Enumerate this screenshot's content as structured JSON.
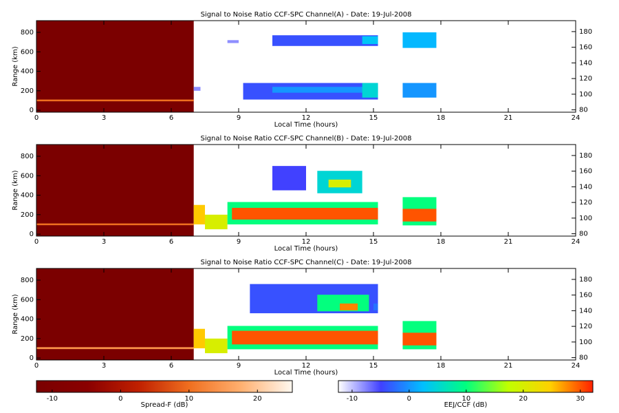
{
  "chart_data": [
    {
      "type": "heatmap",
      "title": "Signal to Noise Ratio CCF-SPC Channel(A) - Date: 19-Jul-2008",
      "x_label": "Local Time (hours)",
      "y_label": "Range (km)",
      "xlim": [
        0,
        24
      ],
      "xticks": [
        0,
        3,
        6,
        9,
        12,
        15,
        18,
        21,
        24
      ],
      "ylim": [
        -20,
        920
      ],
      "yticks": [
        0,
        200,
        400,
        600,
        800
      ],
      "y2lim": [
        77,
        194
      ],
      "y2ticks": [
        80,
        100,
        120,
        140,
        160,
        180
      ],
      "layers": [
        {
          "colorbar": 0,
          "cells": [
            {
              "x": [
                0,
                7
              ],
              "range": [
                -20,
                920
              ],
              "value": -12
            },
            {
              "x": [
                0,
                7
              ],
              "range": [
                92,
                110
              ],
              "value": 10
            }
          ]
        },
        {
          "colorbar": 1,
          "cells": [
            {
              "x": [
                7,
                7.3
              ],
              "range": [
                200,
                240
              ],
              "value": -8
            },
            {
              "x": [
                8.5,
                9
              ],
              "range": [
                690,
                720
              ],
              "value": -8
            },
            {
              "x": [
                10.5,
                15.2
              ],
              "range": [
                660,
                770
              ],
              "value": -4
            },
            {
              "x": [
                14.5,
                15.2
              ],
              "range": [
                680,
                760
              ],
              "value": 3
            },
            {
              "x": [
                16.3,
                17.8
              ],
              "range": [
                640,
                800
              ],
              "value": 2
            },
            {
              "x": [
                9.2,
                15.2
              ],
              "range": [
                110,
                280
              ],
              "value": -4
            },
            {
              "x": [
                10.5,
                15.2
              ],
              "range": [
                180,
                240
              ],
              "value": 0
            },
            {
              "x": [
                14.5,
                15.2
              ],
              "range": [
                130,
                280
              ],
              "value": 5
            },
            {
              "x": [
                16.3,
                17.8
              ],
              "range": [
                130,
                280
              ],
              "value": 0
            }
          ]
        }
      ]
    },
    {
      "type": "heatmap",
      "title": "Signal to Noise Ratio CCF-SPC Channel(B) - Date: 19-Jul-2008",
      "x_label": "Local Time (hours)",
      "y_label": "Range (km)",
      "xlim": [
        0,
        24
      ],
      "xticks": [
        0,
        3,
        6,
        9,
        12,
        15,
        18,
        21,
        24
      ],
      "ylim": [
        -20,
        920
      ],
      "yticks": [
        0,
        200,
        400,
        600,
        800
      ],
      "y2lim": [
        77,
        194
      ],
      "y2ticks": [
        80,
        100,
        120,
        140,
        160,
        180
      ],
      "layers": [
        {
          "colorbar": 0,
          "cells": [
            {
              "x": [
                0,
                7
              ],
              "range": [
                -20,
                920
              ],
              "value": -12
            },
            {
              "x": [
                0,
                7
              ],
              "range": [
                92,
                110
              ],
              "value": 10
            }
          ]
        },
        {
          "colorbar": 1,
          "cells": [
            {
              "x": [
                10.5,
                12
              ],
              "range": [
                450,
                700
              ],
              "value": -5
            },
            {
              "x": [
                12.5,
                14.5
              ],
              "range": [
                420,
                650
              ],
              "value": 5
            },
            {
              "x": [
                13,
                14
              ],
              "range": [
                480,
                560
              ],
              "value": 20
            },
            {
              "x": [
                7,
                7.5
              ],
              "range": [
                100,
                300
              ],
              "value": 25
            },
            {
              "x": [
                7.5,
                8.5
              ],
              "range": [
                50,
                200
              ],
              "value": 20
            },
            {
              "x": [
                8.5,
                15.2
              ],
              "range": [
                100,
                330
              ],
              "value": 10
            },
            {
              "x": [
                8.7,
                15.2
              ],
              "range": [
                150,
                270
              ],
              "value": 30
            },
            {
              "x": [
                16.3,
                17.8
              ],
              "range": [
                90,
                380
              ],
              "value": 10
            },
            {
              "x": [
                16.3,
                17.8
              ],
              "range": [
                130,
                260
              ],
              "value": 30
            }
          ]
        }
      ]
    },
    {
      "type": "heatmap",
      "title": "Signal to Noise Ratio CCF-SPC Channel(C) - Date: 19-Jul-2008",
      "x_label": "Local Time (hours)",
      "y_label": "Range (km)",
      "xlim": [
        0,
        24
      ],
      "xticks": [
        0,
        3,
        6,
        9,
        12,
        15,
        18,
        21,
        24
      ],
      "ylim": [
        -20,
        920
      ],
      "yticks": [
        0,
        200,
        400,
        600,
        800
      ],
      "y2lim": [
        77,
        194
      ],
      "y2ticks": [
        80,
        100,
        120,
        140,
        160,
        180
      ],
      "layers": [
        {
          "colorbar": 0,
          "cells": [
            {
              "x": [
                0,
                7
              ],
              "range": [
                -20,
                920
              ],
              "value": -12
            },
            {
              "x": [
                0,
                7
              ],
              "range": [
                92,
                112
              ],
              "value": 14
            }
          ]
        },
        {
          "colorbar": 1,
          "cells": [
            {
              "x": [
                9.5,
                15.2
              ],
              "range": [
                460,
                760
              ],
              "value": -4
            },
            {
              "x": [
                12.5,
                14.8
              ],
              "range": [
                480,
                650
              ],
              "value": 10
            },
            {
              "x": [
                13.5,
                14.3
              ],
              "range": [
                490,
                560
              ],
              "value": 28
            },
            {
              "x": [
                15,
                15.2
              ],
              "range": [
                490,
                560
              ],
              "value": -2
            },
            {
              "x": [
                7,
                7.5
              ],
              "range": [
                100,
                300
              ],
              "value": 25
            },
            {
              "x": [
                7.5,
                8.5
              ],
              "range": [
                50,
                200
              ],
              "value": 20
            },
            {
              "x": [
                8.5,
                15.2
              ],
              "range": [
                90,
                330
              ],
              "value": 10
            },
            {
              "x": [
                8.7,
                15.2
              ],
              "range": [
                140,
                280
              ],
              "value": 30
            },
            {
              "x": [
                16.3,
                17.8
              ],
              "range": [
                90,
                380
              ],
              "value": 10
            },
            {
              "x": [
                16.3,
                17.8
              ],
              "range": [
                130,
                260
              ],
              "value": 30
            }
          ]
        }
      ]
    }
  ],
  "colorbars": [
    {
      "label": "Spread-F (dB)",
      "lim": [
        -12.3,
        25.1
      ],
      "ticks": [
        -10,
        0,
        10,
        20
      ],
      "colors": [
        "#7a0000",
        "#8a0000",
        "#c02000",
        "#f07020",
        "#ffb070",
        "#fff8f0"
      ]
    },
    {
      "label": "EEJ/CCF (dB)",
      "lim": [
        -12.4,
        32.2
      ],
      "ticks": [
        -10,
        0,
        10,
        20,
        30
      ],
      "colors": [
        "#ffffff",
        "#4040ff",
        "#00c0ff",
        "#00ff80",
        "#c0ff00",
        "#ffd000",
        "#ff2000"
      ]
    }
  ]
}
